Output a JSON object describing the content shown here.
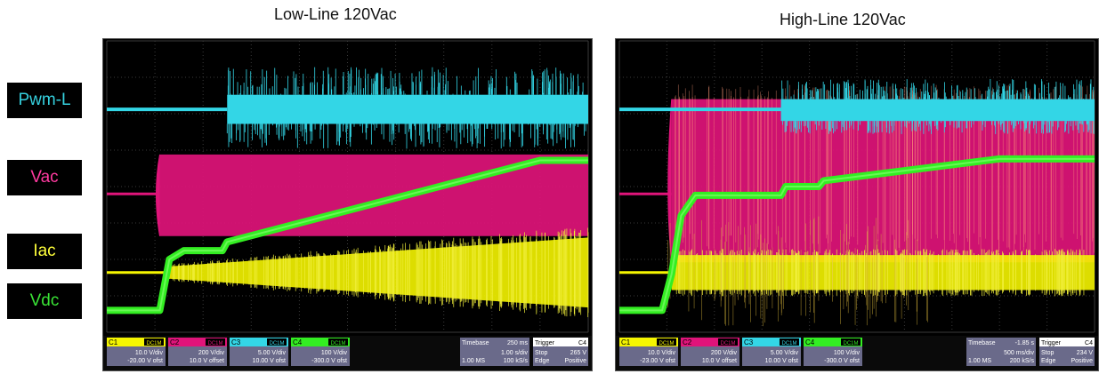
{
  "legend": [
    {
      "label": "Pwm-L",
      "color": "#35d0de"
    },
    {
      "label": "Vac",
      "color": "#ff3aa0"
    },
    {
      "label": "Iac",
      "color": "#ffff3a"
    },
    {
      "label": "Vdc",
      "color": "#39e335"
    }
  ],
  "chart_data": [
    {
      "type": "line",
      "title": "Low-Line 120Vac",
      "channels": [
        {
          "id": "C1",
          "coupling": "DC1M",
          "scale": "10.0 V/div",
          "offset": "-20.00 V ofst",
          "color": "#f5f500"
        },
        {
          "id": "C2",
          "coupling": "DC1M",
          "scale": "200 V/div",
          "offset": "10.0 V offset",
          "color": "#e0147a"
        },
        {
          "id": "C3",
          "coupling": "DC1M",
          "scale": "5.00 V/div",
          "offset": "10.00 V ofst",
          "color": "#33d6e6"
        },
        {
          "id": "C4",
          "coupling": "DC1M",
          "scale": "100 V/div",
          "offset": "-300.0 V ofst",
          "color": "#33ee22"
        }
      ],
      "timebase": {
        "label": "Timebase",
        "value": "250 ms",
        "div": "1.00 s/div",
        "samples": "1.00 MS",
        "rate": "100 kS/s"
      },
      "trigger": {
        "label": "Trigger",
        "channel": "C4",
        "mode": "Stop",
        "level": "265 V",
        "type": "Edge",
        "slope": "Positive"
      },
      "series": [
        {
          "name": "Pwm-L",
          "traces": {
            "base": 0.235,
            "start": 0.25,
            "band": [
              0.185,
              0.285
            ],
            "noise": [
              0.09,
              0.37
            ]
          }
        },
        {
          "name": "Vac",
          "traces": {
            "base": 0.525,
            "start": 0.11,
            "band": [
              0.39,
              0.67
            ]
          }
        },
        {
          "name": "Iac",
          "traces": {
            "base": 0.795,
            "start": 0.12,
            "growth": [
              0.02,
              0.12
            ]
          }
        },
        {
          "name": "Vdc",
          "points": [
            [
              0,
              0.925
            ],
            [
              0.11,
              0.925
            ],
            [
              0.13,
              0.75
            ],
            [
              0.16,
              0.72
            ],
            [
              0.24,
              0.72
            ],
            [
              0.25,
              0.69
            ],
            [
              0.9,
              0.41
            ],
            [
              1.0,
              0.41
            ]
          ]
        }
      ]
    },
    {
      "type": "line",
      "title": "High-Line 120Vac",
      "channels": [
        {
          "id": "C1",
          "coupling": "DC1M",
          "scale": "10.0 V/div",
          "offset": "-23.00 V ofst",
          "color": "#f5f500"
        },
        {
          "id": "C2",
          "coupling": "DC1M",
          "scale": "200 V/div",
          "offset": "10.0 V offset",
          "color": "#e0147a"
        },
        {
          "id": "C3",
          "coupling": "DC1M",
          "scale": "5.00 V/div",
          "offset": "10.00 V ofst",
          "color": "#33d6e6"
        },
        {
          "id": "C4",
          "coupling": "DC1M",
          "scale": "100 V/div",
          "offset": "-300.0 V ofst",
          "color": "#33ee22"
        }
      ],
      "timebase": {
        "label": "Timebase",
        "value": "-1.85 s",
        "div": "500 ms/div",
        "samples": "1.00 MS",
        "rate": "200 kS/s"
      },
      "trigger": {
        "label": "Trigger",
        "channel": "C4",
        "mode": "Stop",
        "level": "234 V",
        "type": "Edge",
        "slope": "Positive"
      },
      "series": [
        {
          "name": "Pwm-L",
          "traces": {
            "base": 0.235,
            "start": 0.34,
            "band": [
              0.2,
              0.275
            ],
            "noise": [
              0.13,
              0.32
            ]
          }
        },
        {
          "name": "Vac",
          "traces": {
            "base": 0.525,
            "start": 0.11,
            "band": [
              0.2,
              0.76
            ]
          }
        },
        {
          "name": "Iac",
          "traces": {
            "base": 0.795,
            "start": 0.11,
            "growth": [
              0.06,
              0.06
            ]
          }
        },
        {
          "name": "Vdc",
          "points": [
            [
              0,
              0.925
            ],
            [
              0.09,
              0.925
            ],
            [
              0.11,
              0.8
            ],
            [
              0.13,
              0.6
            ],
            [
              0.16,
              0.53
            ],
            [
              0.34,
              0.53
            ],
            [
              0.35,
              0.5
            ],
            [
              0.42,
              0.5
            ],
            [
              0.43,
              0.48
            ],
            [
              0.8,
              0.405
            ],
            [
              1.0,
              0.405
            ]
          ]
        }
      ]
    }
  ]
}
